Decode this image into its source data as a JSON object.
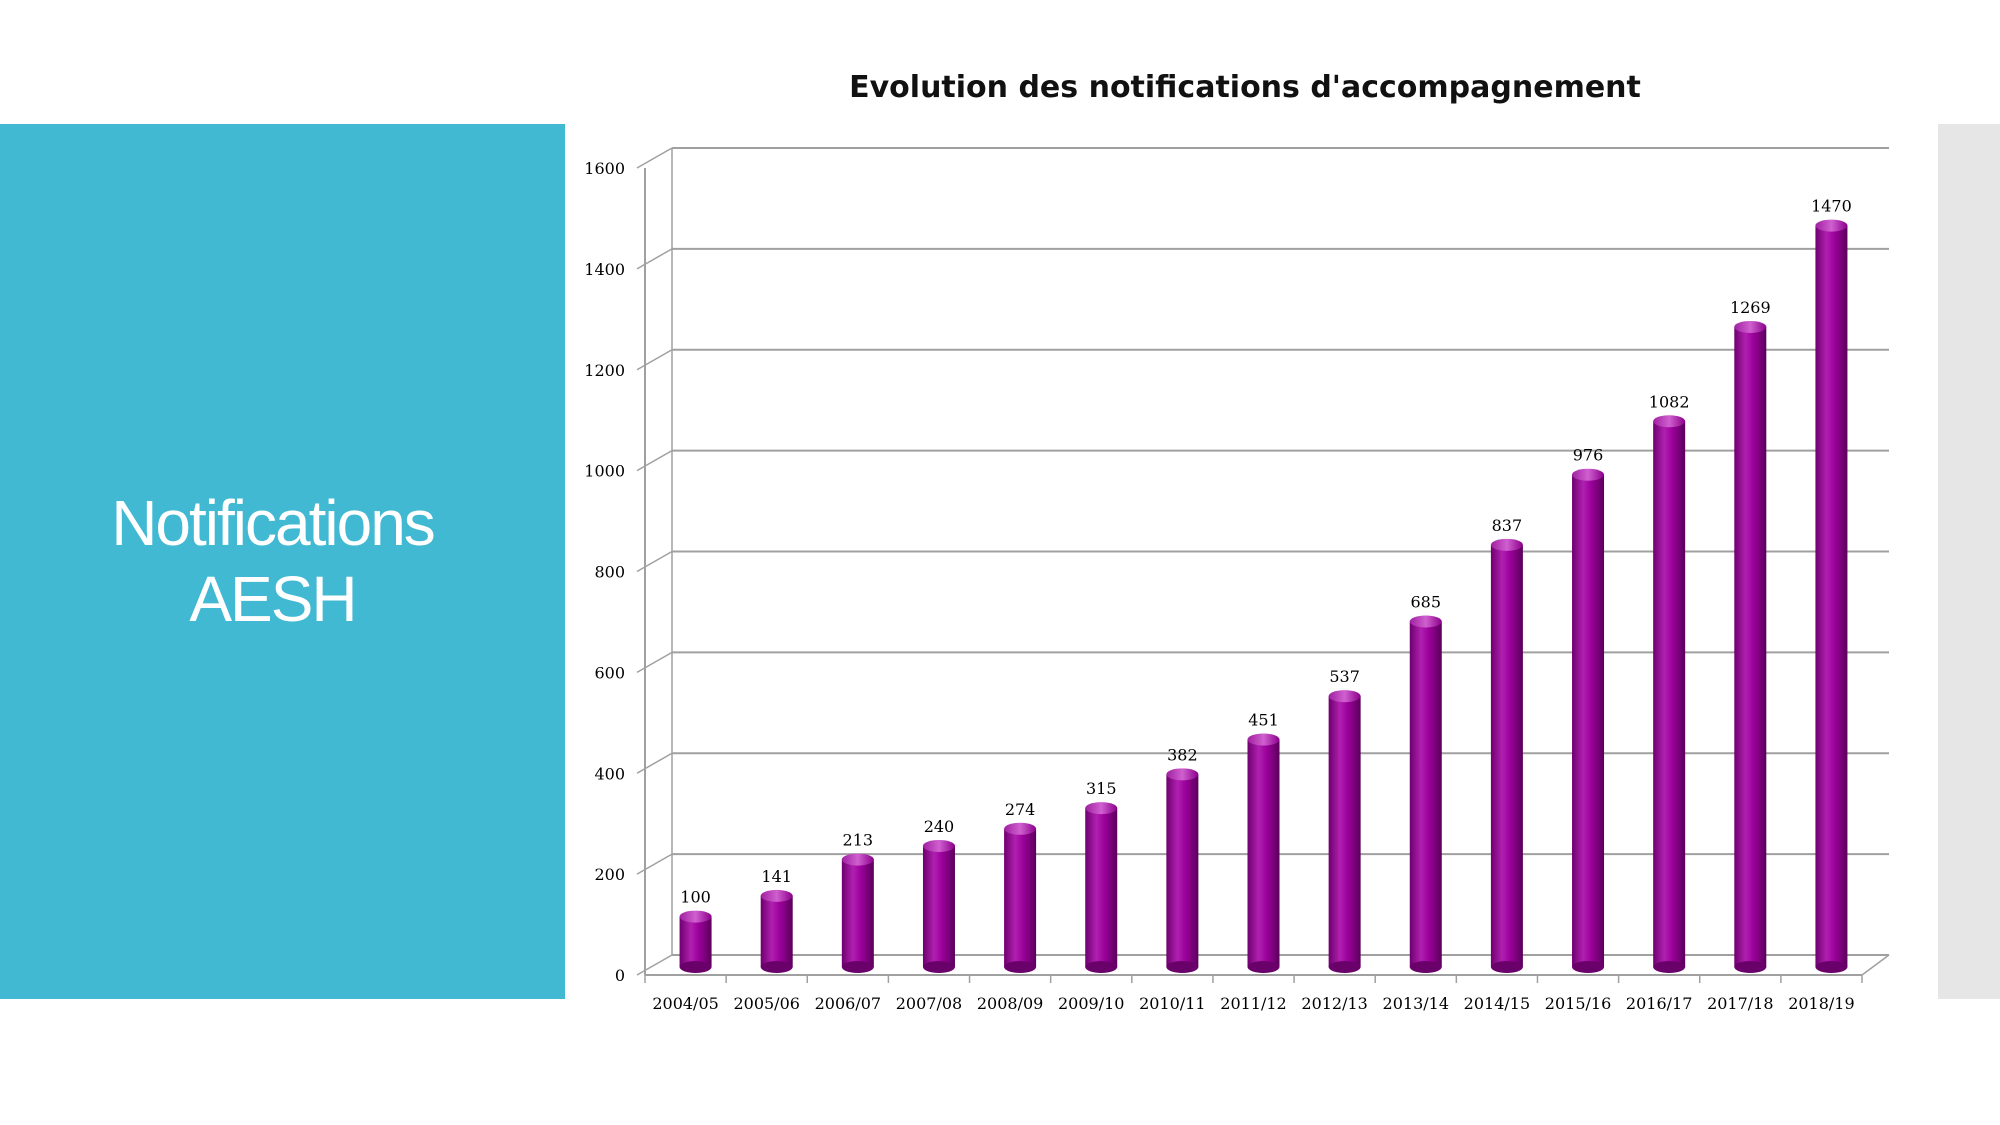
{
  "slide": {
    "title_line1": "Notifications",
    "title_line2": "AESH"
  },
  "colors": {
    "left_panel": "#41b9d3",
    "right_panel": "#e6e6e6",
    "bar": "#9b009b",
    "bar_highlight": "#c040c0",
    "bar_shadow": "#6a006a",
    "gridline": "#a0a0a0"
  },
  "chart_data": {
    "type": "bar",
    "title": "Evolution des notifications d'accompagnement",
    "categories": [
      "2004/05",
      "2005/06",
      "2006/07",
      "2007/08",
      "2008/09",
      "2009/10",
      "2010/11",
      "2011/12",
      "2012/13",
      "2013/14",
      "2014/15",
      "2015/16",
      "2016/17",
      "2017/18",
      "2018/19"
    ],
    "values": [
      100,
      141,
      213,
      240,
      274,
      315,
      382,
      451,
      537,
      685,
      837,
      976,
      1082,
      1269,
      1470
    ],
    "yticks": [
      0,
      200,
      400,
      600,
      800,
      1000,
      1200,
      1400,
      1600
    ],
    "ylim": [
      0,
      1600
    ],
    "grid": true,
    "data_labels": true,
    "legend": "none",
    "style": "3d-cylinder"
  }
}
